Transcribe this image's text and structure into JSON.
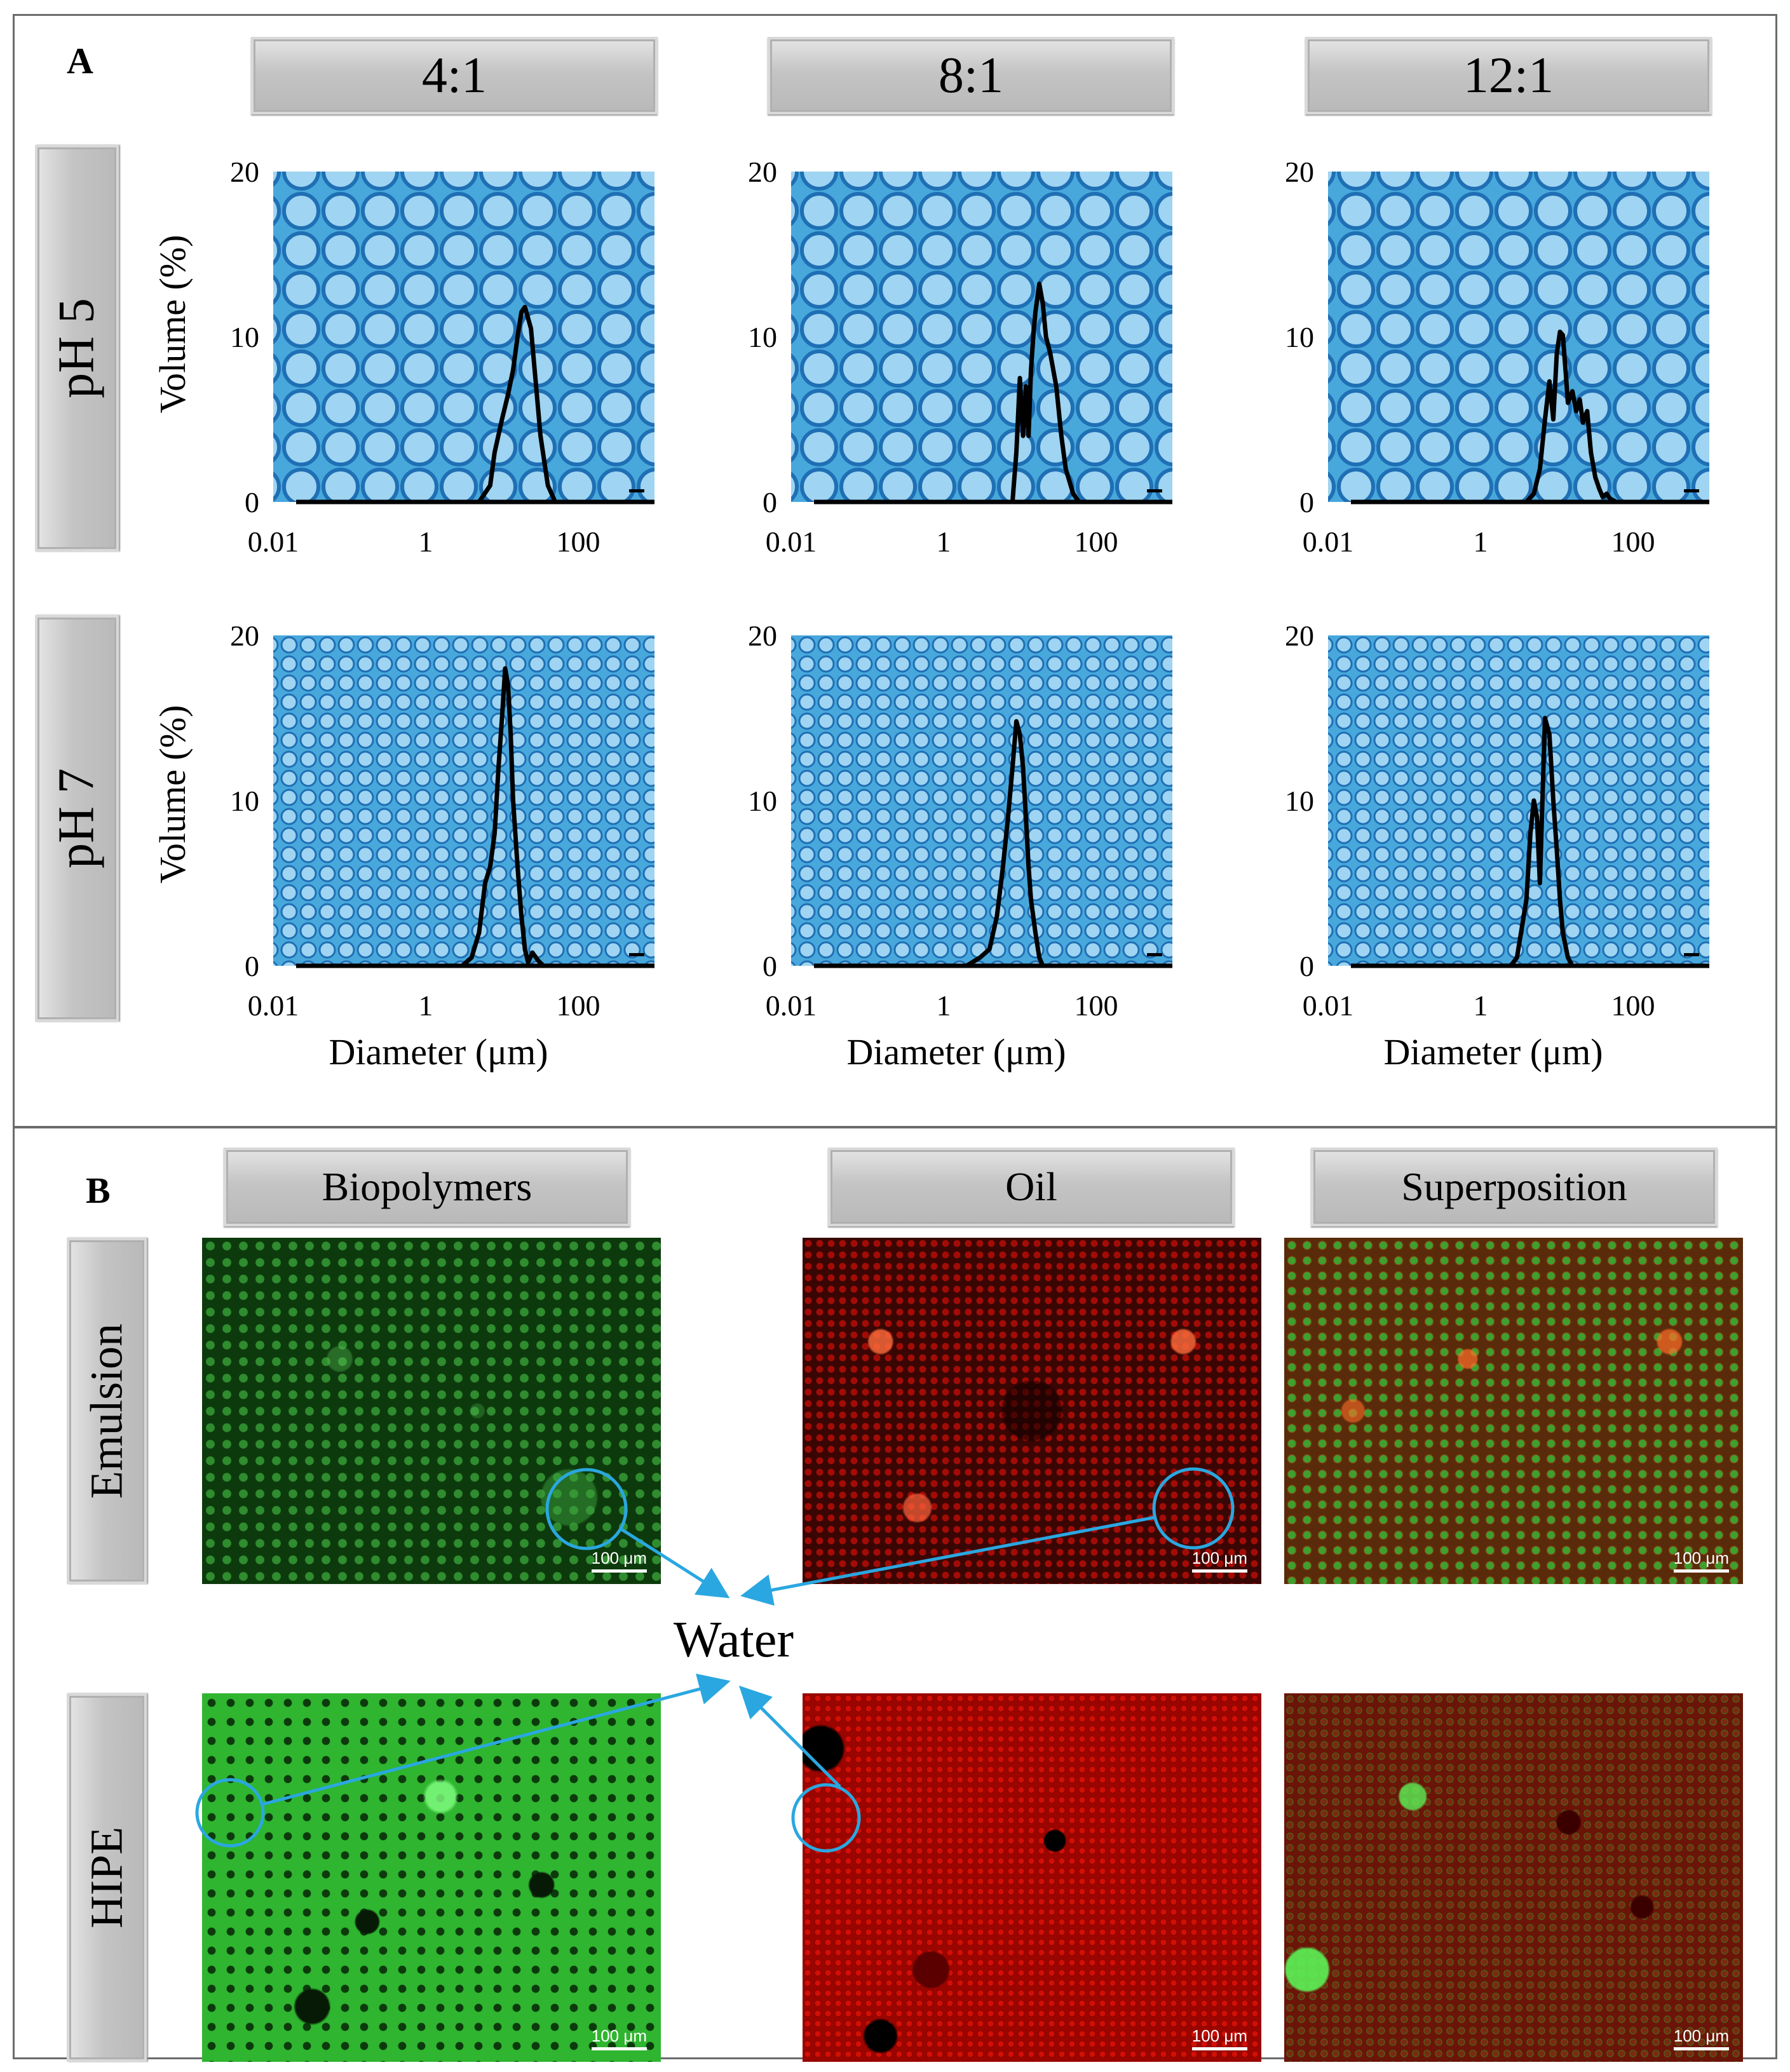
{
  "panel_a": {
    "label": "A",
    "ratio_headers": [
      "4:1",
      "8:1",
      "12:1"
    ],
    "ph_headers": [
      "pH 5",
      "pH 7"
    ],
    "y_axis_label": "Volume (%)",
    "x_axis_label": "Diameter (μm)",
    "x_tick_labels": [
      "0.01",
      "1",
      "100"
    ],
    "y_tick_labels": [
      "0",
      "10",
      "20"
    ]
  },
  "panel_b": {
    "label": "B",
    "column_headers": [
      "Biopolymers",
      "Oil",
      "Superposition"
    ],
    "row_headers": [
      "Emulsion",
      "HIPE"
    ],
    "scale_bar_label": "100 μm",
    "annotation": "Water",
    "colors": {
      "biopolymers": "#1f8a1f",
      "oil": "#b00000",
      "circle": "#2aa7e0",
      "micrograph": "#4aa9dc"
    }
  },
  "chart_data": [
    {
      "type": "line",
      "row": "pH 5",
      "col": "4:1",
      "xlabel": "",
      "ylabel": "Volume (%)",
      "xscale": "log",
      "xlim": [
        0.02,
        1000
      ],
      "ylim": [
        0,
        20
      ],
      "series": [
        {
          "x": [
            0.02,
            5,
            7,
            8,
            10,
            12,
            14,
            16,
            18,
            20,
            24,
            28,
            32,
            40,
            50
          ],
          "values": [
            0,
            0,
            1,
            3,
            5,
            6.5,
            8,
            10,
            11.5,
            11.8,
            10.5,
            7,
            4,
            1,
            0
          ]
        }
      ]
    },
    {
      "type": "line",
      "row": "pH 5",
      "col": "8:1",
      "xlabel": "",
      "ylabel": "",
      "xscale": "log",
      "xlim": [
        0.02,
        1000
      ],
      "ylim": [
        0,
        20
      ],
      "series": [
        {
          "x": [
            0.02,
            8,
            9,
            10,
            11,
            12,
            13,
            14,
            15,
            16,
            18,
            20,
            22,
            25,
            30,
            35,
            40,
            50,
            60
          ],
          "values": [
            0,
            0,
            3,
            7.5,
            4,
            7,
            4,
            8,
            10,
            11.5,
            13.2,
            12,
            10,
            9,
            7,
            4,
            2,
            0.5,
            0
          ]
        }
      ]
    },
    {
      "type": "line",
      "row": "pH 5",
      "col": "12:1",
      "xlabel": "",
      "ylabel": "",
      "xscale": "log",
      "xlim": [
        0.02,
        1000
      ],
      "ylim": [
        0,
        20
      ],
      "series": [
        {
          "x": [
            0.02,
            4,
            5,
            6,
            7,
            8,
            9,
            10,
            11,
            12,
            13,
            14,
            16,
            18,
            20,
            22,
            25,
            28,
            32,
            36,
            40,
            45,
            50,
            60
          ],
          "values": [
            0,
            0,
            0.5,
            2,
            5,
            7.3,
            5,
            9,
            10.3,
            10.1,
            8,
            6,
            6.7,
            5.5,
            6.2,
            4.8,
            5.5,
            3,
            1.5,
            0.8,
            0.3,
            0.5,
            0.2,
            0
          ]
        }
      ]
    },
    {
      "type": "line",
      "row": "pH 7",
      "col": "4:1",
      "xlabel": "Diameter (μm)",
      "ylabel": "Volume (%)",
      "xscale": "log",
      "xlim": [
        0.02,
        1000
      ],
      "ylim": [
        0,
        20
      ],
      "series": [
        {
          "x": [
            0.02,
            3,
            4,
            5,
            6,
            7,
            8,
            9,
            10,
            11,
            12,
            13,
            14,
            16,
            18,
            20,
            22,
            25,
            30,
            35
          ],
          "values": [
            0,
            0,
            0.5,
            2,
            5,
            6,
            8,
            12,
            15,
            18,
            17,
            14,
            10,
            6,
            3,
            1,
            0.2,
            0.8,
            0.3,
            0
          ]
        }
      ]
    },
    {
      "type": "line",
      "row": "pH 7",
      "col": "8:1",
      "xlabel": "Diameter (μm)",
      "ylabel": "",
      "xscale": "log",
      "xlim": [
        0.02,
        1000
      ],
      "ylim": [
        0,
        20
      ],
      "series": [
        {
          "x": [
            0.02,
            2,
            3,
            4,
            5,
            6,
            7,
            8,
            9,
            10,
            11,
            12,
            13,
            14,
            16,
            18,
            20
          ],
          "values": [
            0,
            0,
            0.5,
            1,
            3,
            6,
            9,
            12,
            14.8,
            14,
            12,
            9,
            6,
            4,
            2,
            0.5,
            0
          ]
        }
      ]
    },
    {
      "type": "line",
      "row": "pH 7",
      "col": "12:1",
      "xlabel": "Diameter (μm)",
      "ylabel": "",
      "xscale": "log",
      "xlim": [
        0.02,
        1000
      ],
      "ylim": [
        0,
        20
      ],
      "series": [
        {
          "x": [
            0.02,
            2.5,
            3,
            4,
            4.5,
            5,
            5.5,
            6,
            7,
            8,
            9,
            10,
            11,
            12,
            14,
            16
          ],
          "values": [
            0,
            0,
            0.5,
            4,
            8,
            10,
            9,
            5,
            15,
            14,
            10,
            7,
            4,
            2,
            0.5,
            0
          ]
        }
      ]
    }
  ]
}
